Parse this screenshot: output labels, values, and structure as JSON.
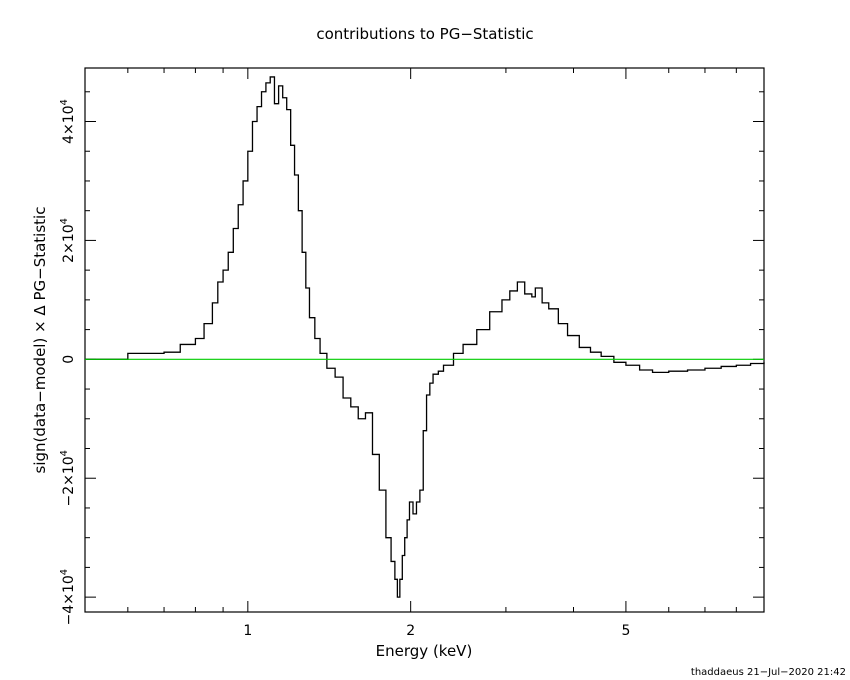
{
  "chart_data": {
    "type": "line",
    "title": "contributions to PG−Statistic",
    "xlabel": "Energy (keV)",
    "ylabel": "sign(data−model) × Δ PG−Statistic",
    "footer": "thaddaeus 21−Jul−2020 21:42",
    "x_scale": "log",
    "xlim": [
      0.5,
      9.0
    ],
    "ylim": [
      -42500,
      49000
    ],
    "x_ticks": [
      {
        "value": 1,
        "label": "1"
      },
      {
        "value": 2,
        "label": "2"
      },
      {
        "value": 5,
        "label": "5"
      }
    ],
    "y_ticks": [
      {
        "value": -40000,
        "label": "−4×10",
        "exp": "4"
      },
      {
        "value": -20000,
        "label": "−2×10",
        "exp": "4"
      },
      {
        "value": 0,
        "label": "0",
        "exp": ""
      },
      {
        "value": 20000,
        "label": "2×10",
        "exp": "4"
      },
      {
        "value": 40000,
        "label": "4×10",
        "exp": "4"
      }
    ],
    "grid": false,
    "series": [
      {
        "color": "#000000",
        "x": [
          0.5,
          0.6,
          0.7,
          0.75,
          0.8,
          0.83,
          0.86,
          0.88,
          0.9,
          0.92,
          0.94,
          0.96,
          0.98,
          1.0,
          1.02,
          1.04,
          1.06,
          1.08,
          1.1,
          1.12,
          1.14,
          1.16,
          1.18,
          1.2,
          1.22,
          1.24,
          1.26,
          1.28,
          1.3,
          1.33,
          1.36,
          1.4,
          1.45,
          1.5,
          1.55,
          1.6,
          1.65,
          1.7,
          1.75,
          1.8,
          1.84,
          1.87,
          1.89,
          1.91,
          1.93,
          1.95,
          1.97,
          1.99,
          2.02,
          2.05,
          2.08,
          2.11,
          2.14,
          2.17,
          2.2,
          2.25,
          2.3,
          2.4,
          2.5,
          2.65,
          2.8,
          2.95,
          3.05,
          3.15,
          3.25,
          3.35,
          3.4,
          3.5,
          3.6,
          3.75,
          3.9,
          4.1,
          4.3,
          4.5,
          4.75,
          5.0,
          5.3,
          5.6,
          6.0,
          6.5,
          7.0,
          7.5,
          8.0,
          8.5,
          9.0
        ],
        "y": [
          0,
          1000,
          1200,
          2500,
          3500,
          6000,
          9500,
          13000,
          15000,
          18000,
          22000,
          26000,
          30000,
          35000,
          40000,
          42500,
          45000,
          46500,
          47500,
          43000,
          46000,
          44000,
          42000,
          36000,
          31000,
          25000,
          18000,
          12000,
          7000,
          3500,
          1000,
          -1500,
          -3000,
          -6500,
          -8000,
          -10000,
          -9000,
          -16000,
          -22000,
          -30000,
          -34000,
          -37000,
          -40000,
          -37000,
          -33000,
          -30000,
          -27000,
          -24000,
          -26000,
          -24000,
          -22000,
          -12000,
          -6000,
          -4000,
          -2500,
          -2000,
          -1000,
          1000,
          2500,
          5000,
          8000,
          10000,
          11500,
          13000,
          11000,
          10500,
          12000,
          9500,
          8500,
          6000,
          4000,
          2000,
          1200,
          500,
          -500,
          -1000,
          -1800,
          -2200,
          -2000,
          -1800,
          -1500,
          -1200,
          -1000,
          -700,
          -500
        ]
      },
      {
        "name": "zero",
        "color": "#00cc00",
        "x": [
          0.5,
          9.0
        ],
        "y": [
          0,
          0
        ]
      }
    ]
  }
}
